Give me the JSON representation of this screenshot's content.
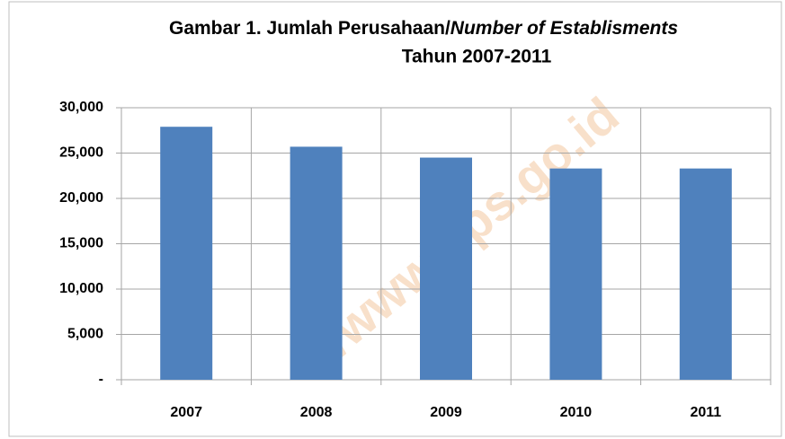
{
  "chart_data": {
    "type": "bar",
    "title": {
      "main": "Gambar 1. Jumlah Perusahaan/",
      "italic": "Number of Establisments"
    },
    "subtitle": "Tahun 2007-2011",
    "watermark": "//www.bps.go.id",
    "categories": [
      "2007",
      "2008",
      "2009",
      "2010",
      "2011"
    ],
    "values": [
      27900,
      25700,
      24500,
      23300,
      23300
    ],
    "color": "#4f81bd",
    "ylim": [
      0,
      30000
    ],
    "yticks": [
      {
        "value": 0,
        "label": "-"
      },
      {
        "value": 5000,
        "label": "5,000"
      },
      {
        "value": 10000,
        "label": "10,000"
      },
      {
        "value": 15000,
        "label": "15,000"
      },
      {
        "value": 20000,
        "label": "20,000"
      },
      {
        "value": 25000,
        "label": "25,000"
      },
      {
        "value": 30000,
        "label": "30,000"
      }
    ],
    "grid": true
  }
}
